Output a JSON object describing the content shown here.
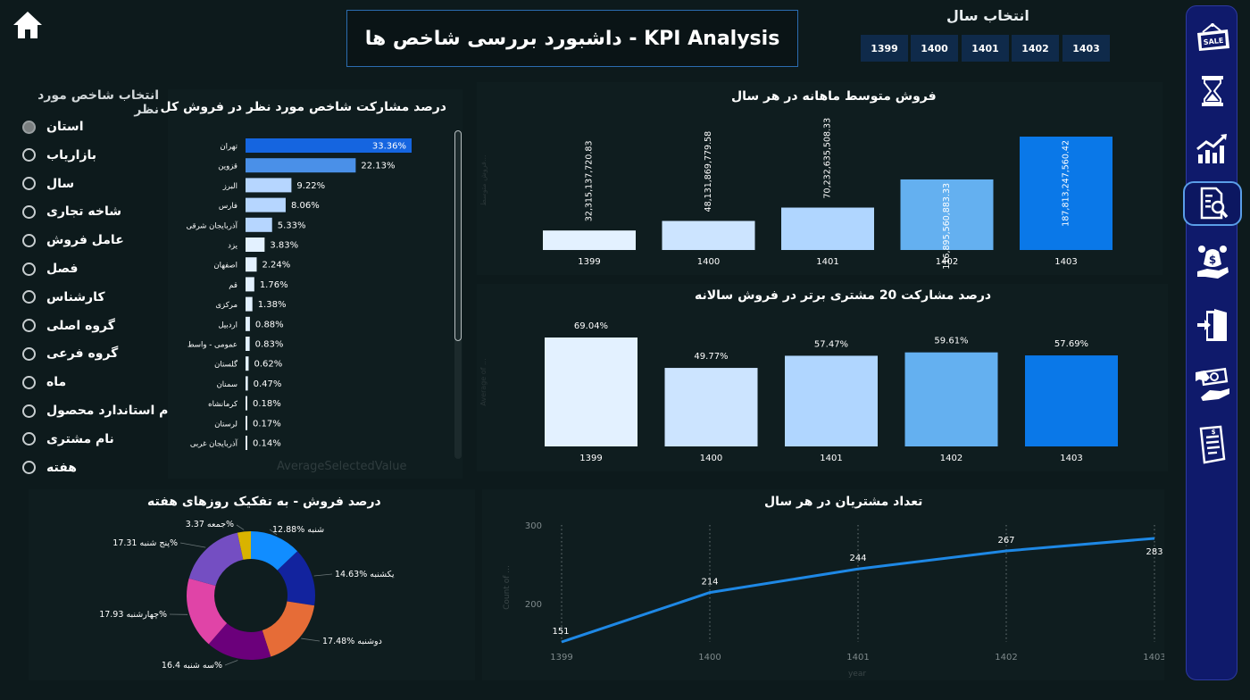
{
  "header": {
    "title": "داشبورد بررسی شاخص ها - KPI Analysis",
    "year_label": "انتخاب سال",
    "years": [
      "1399",
      "1400",
      "1401",
      "1402",
      "1403"
    ]
  },
  "slicer": {
    "label": "انتخاب شاخص مورد نظر",
    "items": [
      "استان",
      "بازاریاب",
      "سال",
      "شاخه تجاری",
      "عامل فروش",
      "فصل",
      "کارشناس",
      "گروه اصلی",
      "گروه فرعی",
      "ماه",
      "نام استاندارد محصول",
      "نام مشتری",
      "هفته"
    ],
    "selected": "استان"
  },
  "nav": {
    "items": [
      "sale-tag-icon",
      "hourglass-icon",
      "growth-chart-icon",
      "report-search-icon",
      "money-hand-icon",
      "exit-door-icon",
      "cash-handshake-icon",
      "invoice-icon"
    ],
    "active": "report-search-icon"
  },
  "colors": {
    "background": "#0d1a1c",
    "panel": "#0f1d1f",
    "nav": "#0f1a6b",
    "accent": "#1e88e5",
    "bar_shades": [
      "#e3f1ff",
      "#cce4ff",
      "#b0d6ff",
      "#64b0f0",
      "#0a78e8"
    ]
  },
  "charts": {
    "share": {
      "title": "درصد مشارکت شاخص مورد نظر در فروش کل",
      "footer": "AverageSelectedValue"
    },
    "monthly": {
      "title": "فروش متوسط ماهانه در هر سال",
      "ylabel": "فروش متوسط..."
    },
    "top20": {
      "title": "درصد مشارکت 20 مشتری برتر در فروش سالانه",
      "ylabel": "Average of ..."
    },
    "weekday": {
      "title": "درصد فروش - به تفکیک روزهای هفته"
    },
    "customers": {
      "title": "تعداد مشتریان در هر سال",
      "xlabel": "year",
      "ylabel": "Count of ..."
    }
  },
  "chart_data": [
    {
      "type": "bar",
      "orientation": "horizontal",
      "title": "درصد مشارکت شاخص مورد نظر در فروش کل",
      "categories": [
        "تهران",
        "قزوین",
        "البرز",
        "فارس",
        "آذربایجان شرقی",
        "یزد",
        "اصفهان",
        "قم",
        "مرکزی",
        "اردبیل",
        "عمومی - واسط",
        "گلستان",
        "سمنان",
        "کرمانشاه",
        "لرستان",
        "آذربایجان غربی"
      ],
      "values": [
        33.36,
        22.13,
        9.22,
        8.06,
        5.33,
        3.83,
        2.24,
        1.76,
        1.38,
        0.88,
        0.83,
        0.62,
        0.47,
        0.18,
        0.17,
        0.14
      ],
      "labels": [
        "33.36%",
        "22.13%",
        "9.22%",
        "8.06%",
        "5.33%",
        "3.83%",
        "2.24%",
        "1.76%",
        "1.38%",
        "0.88%",
        "0.83%",
        "0.62%",
        "0.47%",
        "0.18%",
        "0.17%",
        "0.14%"
      ]
    },
    {
      "type": "bar",
      "title": "فروش متوسط ماهانه در هر سال",
      "categories": [
        "1399",
        "1400",
        "1401",
        "1402",
        "1403"
      ],
      "values": [
        32315137720.83,
        48131869779.58,
        70232635508.33,
        116895560883.33,
        187813247560.42
      ],
      "labels": [
        "32,315,137,720.83",
        "48,131,869,779.58",
        "70,232,635,508.33",
        "116,895,560,883.33",
        "187,813,247,560.42"
      ]
    },
    {
      "type": "bar",
      "title": "درصد مشارکت 20 مشتری برتر در فروش سالانه",
      "categories": [
        "1399",
        "1400",
        "1401",
        "1402",
        "1403"
      ],
      "values": [
        69.04,
        49.77,
        57.47,
        59.61,
        57.69
      ],
      "labels": [
        "69.04%",
        "49.77%",
        "57.47%",
        "59.61%",
        "57.69%"
      ]
    },
    {
      "type": "pie",
      "title": "درصد فروش - به تفکیک روزهای هفته",
      "categories": [
        "شنبه",
        "یکشنبه",
        "دوشنبه",
        "سه شنبه",
        "چهارشنبه",
        "پنج شنبه",
        "جمعه"
      ],
      "values": [
        12.88,
        14.63,
        17.48,
        16.4,
        17.93,
        17.31,
        3.37
      ],
      "labels": [
        "12.88%",
        "14.63%",
        "17.48%",
        "16.4%",
        "17.93%",
        "17.31%",
        "3.37%"
      ],
      "colors": [
        "#118dff",
        "#12239e",
        "#e66c37",
        "#6b007b",
        "#e044a7",
        "#744ec2",
        "#d9b300"
      ]
    },
    {
      "type": "line",
      "title": "تعداد مشتریان در هر سال",
      "x": [
        "1399",
        "1400",
        "1401",
        "1402",
        "1403"
      ],
      "values": [
        151,
        214,
        244,
        267,
        283
      ],
      "yticks": [
        200,
        300
      ],
      "xlabel": "year",
      "ylabel": "Count of ...",
      "ylim": [
        151,
        300
      ]
    }
  ]
}
